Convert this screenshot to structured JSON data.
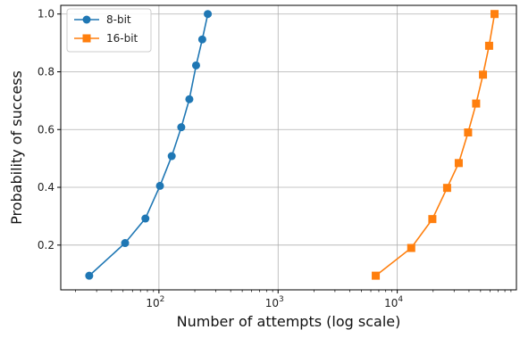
{
  "chart_data": {
    "type": "line",
    "title": "",
    "xlabel": "Number of attempts (log scale)",
    "ylabel": "Probability of success",
    "xscale": "log",
    "xlim": [
      15,
      100000
    ],
    "ylim": [
      0.045,
      1.03
    ],
    "xticks": [
      {
        "value": 100,
        "base": "10",
        "exp": "2"
      },
      {
        "value": 1000,
        "base": "10",
        "exp": "3"
      },
      {
        "value": 10000,
        "base": "10",
        "exp": "4"
      }
    ],
    "yticks": [
      "0.2",
      "0.4",
      "0.6",
      "0.8",
      "1.0"
    ],
    "grid": true,
    "legend_position": "top-left",
    "series": [
      {
        "name": "8-bit",
        "color": "#1f77b4",
        "marker": "circle",
        "x": [
          26,
          52,
          77,
          102,
          128,
          154,
          180,
          205,
          231,
          257
        ],
        "y": [
          0.094,
          0.207,
          0.292,
          0.405,
          0.508,
          0.608,
          0.705,
          0.822,
          0.912,
          1.0
        ]
      },
      {
        "name": "16-bit",
        "color": "#ff7f0e",
        "marker": "square",
        "x": [
          6600,
          13100,
          19700,
          26200,
          32800,
          39300,
          45900,
          52400,
          59000,
          65536
        ],
        "y": [
          0.094,
          0.19,
          0.29,
          0.398,
          0.484,
          0.59,
          0.69,
          0.79,
          0.89,
          1.0
        ]
      }
    ]
  }
}
